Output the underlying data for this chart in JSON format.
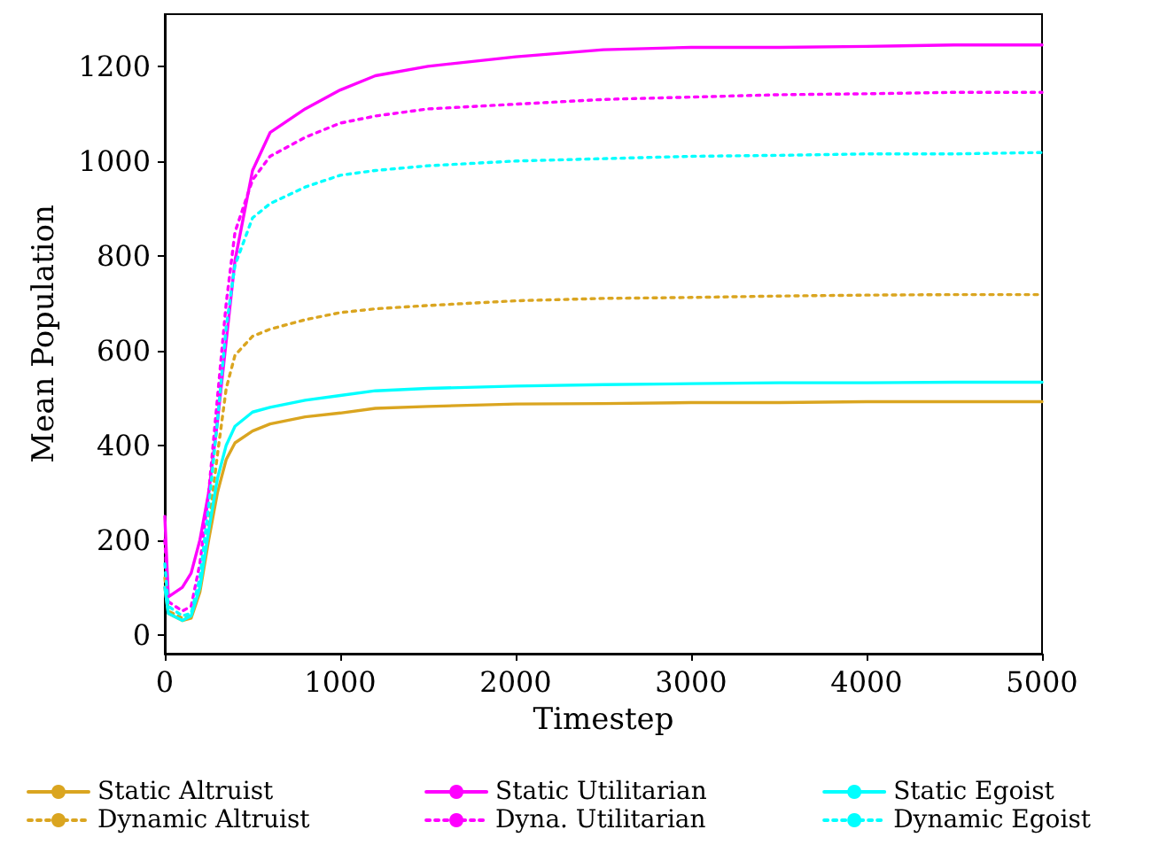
{
  "chart_data": {
    "type": "line",
    "xlabel": "Timestep",
    "ylabel": "Mean Population",
    "x": [
      0,
      20,
      100,
      150,
      200,
      250,
      300,
      350,
      400,
      500,
      600,
      800,
      1000,
      1200,
      1500,
      2000,
      2500,
      3000,
      3500,
      4000,
      4500,
      5000
    ],
    "xlim": [
      0,
      5000
    ],
    "xticks": [
      0,
      1000,
      2000,
      3000,
      4000,
      5000
    ],
    "ylim": [
      -40,
      1310
    ],
    "yticks": [
      0,
      200,
      400,
      600,
      800,
      1000,
      1200
    ],
    "grid": false,
    "legend": "bottom",
    "marker": "none",
    "series": [
      {
        "name": "Static Altruist",
        "color": "#daa520",
        "line_style": "solid",
        "values": [
          100,
          45,
          30,
          35,
          90,
          200,
          300,
          370,
          405,
          430,
          445,
          460,
          468,
          478,
          482,
          487,
          488,
          490,
          490,
          492,
          492,
          492
        ]
      },
      {
        "name": "Dynamic Altruist",
        "color": "#daa520",
        "line_style": "dotted",
        "values": [
          120,
          50,
          35,
          40,
          100,
          230,
          380,
          520,
          590,
          630,
          645,
          665,
          680,
          688,
          695,
          705,
          710,
          712,
          715,
          717,
          718,
          718
        ]
      },
      {
        "name": "Static Utilitarian",
        "color": "#ff00ff",
        "line_style": "solid",
        "values": [
          250,
          80,
          100,
          130,
          200,
          300,
          450,
          620,
          790,
          980,
          1060,
          1110,
          1150,
          1180,
          1200,
          1220,
          1235,
          1240,
          1240,
          1242,
          1245,
          1245
        ]
      },
      {
        "name": "Dyna. Utilitarian",
        "color": "#ff00ff",
        "line_style": "dotted",
        "values": [
          200,
          70,
          50,
          60,
          150,
          300,
          500,
          700,
          850,
          960,
          1010,
          1050,
          1080,
          1095,
          1110,
          1120,
          1130,
          1135,
          1140,
          1142,
          1145,
          1145
        ]
      },
      {
        "name": "Static Egoist",
        "color": "#00ffff",
        "line_style": "solid",
        "values": [
          100,
          45,
          30,
          40,
          100,
          220,
          330,
          400,
          440,
          470,
          480,
          495,
          505,
          515,
          520,
          525,
          528,
          530,
          532,
          532,
          533,
          533
        ]
      },
      {
        "name": "Dynamic Egoist",
        "color": "#00ffff",
        "line_style": "dotted",
        "values": [
          150,
          60,
          40,
          45,
          120,
          270,
          450,
          650,
          780,
          880,
          910,
          945,
          970,
          980,
          990,
          1000,
          1005,
          1010,
          1012,
          1015,
          1015,
          1018
        ]
      }
    ]
  }
}
